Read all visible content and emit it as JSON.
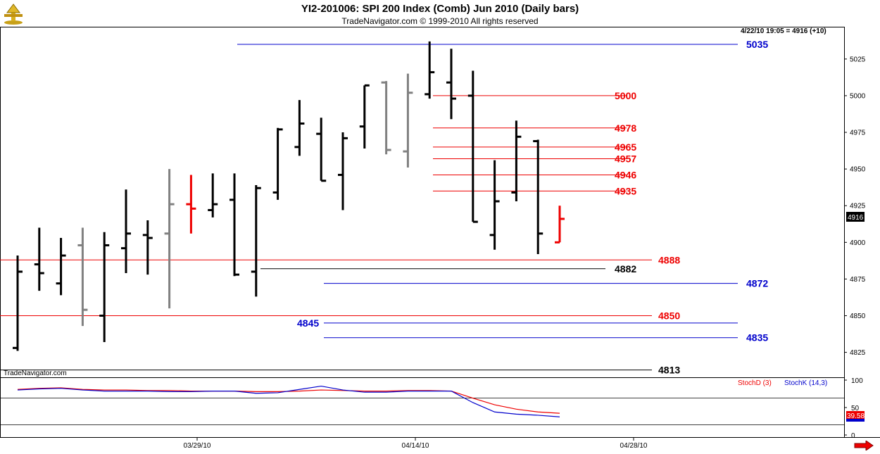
{
  "header": {
    "title": "YI2-201006:  SPI 200 Index (Comb) Jun 2010  (Daily bars)",
    "copyright": "TradeNavigator.com © 1999-2010 All rights reserved"
  },
  "readout": "4/22/10 19:05 = 4916 (+10)",
  "watermark": "TradeNavigator.com",
  "icons": {
    "logo": "trade-navigator-logo-icon",
    "scroll": "red-arrow-right-icon"
  },
  "chart_data": [
    {
      "type": "ohlc",
      "title": "YI2-201006:  SPI 200 Index (Comb) Jun 2010  (Daily bars)",
      "y_ticks": [
        "5025",
        "5000",
        "4975",
        "4950",
        "4925",
        "4900",
        "4875",
        "4850",
        "4825"
      ],
      "ylim": [
        4808,
        5047
      ],
      "x_ticks": [
        "03/29/10",
        "04/14/10",
        "04/28/10"
      ],
      "last_price_label": "4916",
      "bars": [
        {
          "o": 4828,
          "h": 4891,
          "l": 4826,
          "c": 4880,
          "color": "#000000"
        },
        {
          "o": 4885,
          "h": 4910,
          "l": 4867,
          "c": 4879,
          "color": "#000000"
        },
        {
          "o": 4872,
          "h": 4903,
          "l": 4864,
          "c": 4891,
          "color": "#000000"
        },
        {
          "o": 4898,
          "h": 4910,
          "l": 4843,
          "c": 4854,
          "color": "#808080"
        },
        {
          "o": 4850,
          "h": 4907,
          "l": 4832,
          "c": 4898,
          "color": "#000000"
        },
        {
          "o": 4896,
          "h": 4936,
          "l": 4879,
          "c": 4906,
          "color": "#000000"
        },
        {
          "o": 4905,
          "h": 4915,
          "l": 4878,
          "c": 4903,
          "color": "#000000"
        },
        {
          "o": 4906,
          "h": 4950,
          "l": 4855,
          "c": 4926,
          "color": "#808080"
        },
        {
          "o": 4926,
          "h": 4946,
          "l": 4906,
          "c": 4923,
          "color": "#ee0000"
        },
        {
          "o": 4922,
          "h": 4947,
          "l": 4917,
          "c": 4926,
          "color": "#000000"
        },
        {
          "o": 4929,
          "h": 4947,
          "l": 4877,
          "c": 4878,
          "color": "#000000"
        },
        {
          "o": 4880,
          "h": 4939,
          "l": 4863,
          "c": 4937,
          "color": "#000000"
        },
        {
          "o": 4934,
          "h": 4978,
          "l": 4929,
          "c": 4977,
          "color": "#000000"
        },
        {
          "o": 4965,
          "h": 4997,
          "l": 4959,
          "c": 4981,
          "color": "#000000"
        },
        {
          "o": 4974,
          "h": 4985,
          "l": 4942,
          "c": 4942,
          "color": "#000000"
        },
        {
          "o": 4946,
          "h": 4975,
          "l": 4922,
          "c": 4971,
          "color": "#000000"
        },
        {
          "o": 4979,
          "h": 5007,
          "l": 4964,
          "c": 5007,
          "color": "#000000"
        },
        {
          "o": 5009,
          "h": 5010,
          "l": 4960,
          "c": 4963,
          "color": "#808080"
        },
        {
          "o": 4962,
          "h": 5015,
          "l": 4951,
          "c": 5002,
          "color": "#808080"
        },
        {
          "o": 5001,
          "h": 5037,
          "l": 4998,
          "c": 5016,
          "color": "#000000"
        },
        {
          "o": 5009,
          "h": 5032,
          "l": 4984,
          "c": 4998,
          "color": "#000000"
        },
        {
          "o": 5000,
          "h": 5017,
          "l": 4914,
          "c": 4914,
          "color": "#000000"
        },
        {
          "o": 4905,
          "h": 4956,
          "l": 4895,
          "c": 4928,
          "color": "#000000"
        },
        {
          "o": 4934,
          "h": 4983,
          "l": 4928,
          "c": 4972,
          "color": "#000000"
        },
        {
          "o": 4969,
          "h": 4970,
          "l": 4892,
          "c": 4906,
          "color": "#000000"
        },
        {
          "o": 4900,
          "h": 4925,
          "l": 4900,
          "c": 4916,
          "color": "#ee0000"
        }
      ],
      "levels": [
        {
          "value": 5035,
          "label": "5035",
          "color": "#0000cc"
        },
        {
          "value": 5000,
          "label": "5000",
          "color": "#ee0000"
        },
        {
          "value": 4978,
          "label": "4978",
          "color": "#ee0000"
        },
        {
          "value": 4965,
          "label": "4965",
          "color": "#ee0000"
        },
        {
          "value": 4957,
          "label": "4957",
          "color": "#ee0000"
        },
        {
          "value": 4946,
          "label": "4946",
          "color": "#ee0000"
        },
        {
          "value": 4935,
          "label": "4935",
          "color": "#ee0000"
        },
        {
          "value": 4888,
          "label": "4888",
          "color": "#ee0000"
        },
        {
          "value": 4882,
          "label": "4882",
          "color": "#000000"
        },
        {
          "value": 4872,
          "label": "4872",
          "color": "#0000cc"
        },
        {
          "value": 4850,
          "label": "4850",
          "color": "#ee0000"
        },
        {
          "value": 4845,
          "label": "4845",
          "color": "#0000cc"
        },
        {
          "value": 4835,
          "label": "4835",
          "color": "#0000cc"
        },
        {
          "value": 4813,
          "label": "4813",
          "color": "#000000"
        }
      ]
    },
    {
      "type": "line",
      "y_ticks": [
        "100",
        "50",
        "0"
      ],
      "ylim": [
        0,
        100
      ],
      "current_value_label": "39.58",
      "series": [
        {
          "name": "StochD (3)",
          "color": "#ee0000",
          "values": [
            83,
            85,
            86,
            83,
            82,
            82,
            81,
            81,
            80,
            80,
            80,
            79,
            79,
            80,
            82,
            81,
            80,
            80,
            81,
            81,
            80,
            67,
            55,
            47,
            42,
            39.58
          ]
        },
        {
          "name": "StochK (14,3)",
          "color": "#0000cc",
          "values": [
            82,
            84,
            85,
            82,
            80,
            80,
            80,
            79,
            79,
            80,
            80,
            76,
            77,
            83,
            89,
            82,
            78,
            78,
            80,
            80,
            80,
            59,
            42,
            38,
            36,
            33
          ]
        }
      ]
    }
  ]
}
